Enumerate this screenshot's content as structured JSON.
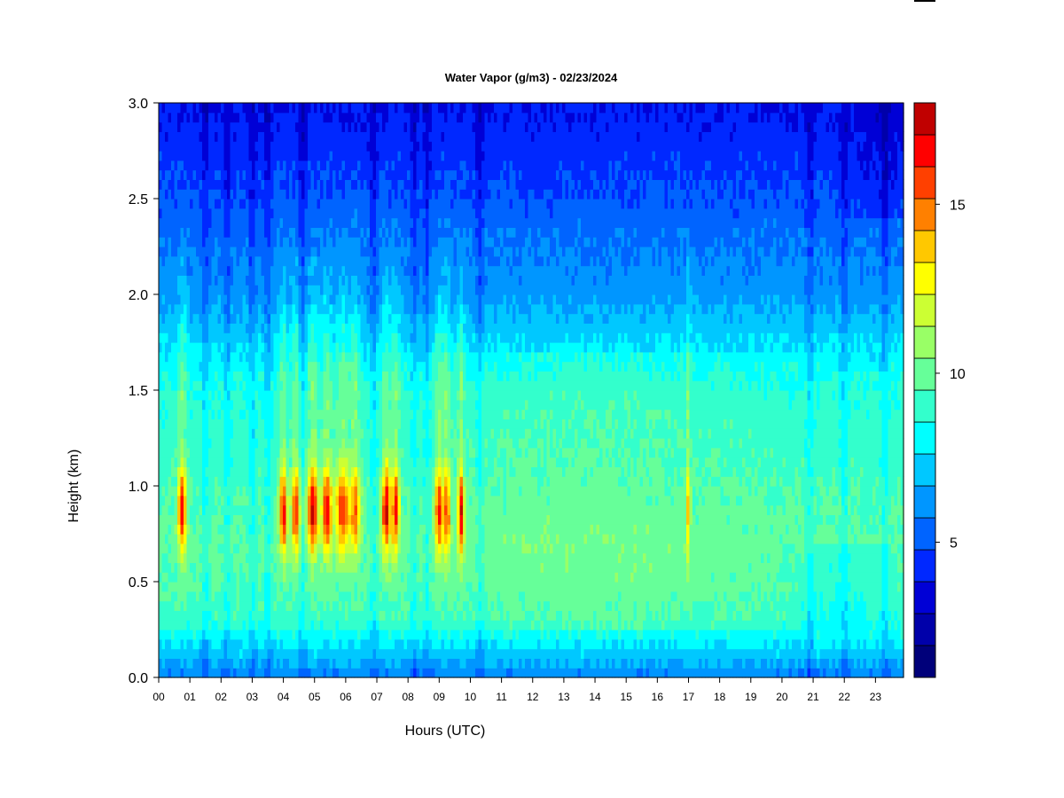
{
  "chart_data": {
    "type": "heatmap",
    "title": "Water Vapor (g/m3) - 02/23/2024",
    "xlabel": "Hours (UTC)",
    "ylabel": "Height (km)",
    "x_ticks": [
      "00",
      "01",
      "02",
      "03",
      "04",
      "05",
      "06",
      "07",
      "08",
      "09",
      "10",
      "11",
      "12",
      "13",
      "14",
      "15",
      "16",
      "17",
      "18",
      "19",
      "20",
      "21",
      "22",
      "23"
    ],
    "xlim": [
      0,
      23.9
    ],
    "y_ticks": [
      "0.0",
      "0.5",
      "1.0",
      "1.5",
      "2.0",
      "2.5",
      "3.0"
    ],
    "ylim": [
      0,
      3.0
    ],
    "colorbar": {
      "range": [
        1,
        18
      ],
      "ticks": [
        "5",
        "10",
        "15"
      ],
      "tick_values": [
        5,
        10,
        15
      ],
      "levels": [
        1,
        2,
        3,
        4,
        5,
        6,
        7,
        8,
        9,
        10,
        11,
        12,
        13,
        14,
        15,
        16,
        17,
        18
      ],
      "colors": [
        "#00007a",
        "#0000aa",
        "#0000d6",
        "#0028ff",
        "#0064ff",
        "#0096ff",
        "#00c8ff",
        "#00ffff",
        "#33ffcc",
        "#66ff99",
        "#99ff66",
        "#ccff33",
        "#ffff00",
        "#ffc800",
        "#ff8000",
        "#ff4000",
        "#ff0000",
        "#c00000",
        "#800000"
      ]
    },
    "profile_heights": [
      0.0,
      0.1,
      0.2,
      0.3,
      0.5,
      0.7,
      0.9,
      1.1,
      1.3,
      1.5,
      1.7,
      2.0,
      2.3,
      2.6,
      3.0
    ],
    "profile_values": [
      5.0,
      6.3,
      7.4,
      8.6,
      9.1,
      9.3,
      9.0,
      8.6,
      8.4,
      8.2,
      7.2,
      5.6,
      4.8,
      3.9,
      3.0
    ],
    "humid_events": [
      {
        "hour": 0.75,
        "peak": 16.5,
        "width": 0.13
      },
      {
        "hour": 4.0,
        "peak": 16.8,
        "width": 0.12
      },
      {
        "hour": 4.4,
        "peak": 16.0,
        "width": 0.14
      },
      {
        "hour": 4.95,
        "peak": 17.0,
        "width": 0.18
      },
      {
        "hour": 5.4,
        "peak": 16.6,
        "width": 0.16
      },
      {
        "hour": 5.9,
        "peak": 15.8,
        "width": 0.22
      },
      {
        "hour": 6.3,
        "peak": 15.0,
        "width": 0.16
      },
      {
        "hour": 7.3,
        "peak": 17.2,
        "width": 0.14
      },
      {
        "hour": 7.6,
        "peak": 16.4,
        "width": 0.12
      },
      {
        "hour": 9.0,
        "peak": 16.2,
        "width": 0.14
      },
      {
        "hour": 9.25,
        "peak": 16.0,
        "width": 0.1
      },
      {
        "hour": 9.7,
        "peak": 16.8,
        "width": 0.1
      },
      {
        "hour": 17.0,
        "peak": 14.0,
        "width": 0.06
      }
    ],
    "dry_hours": [
      1.5,
      2.2,
      3.0,
      3.5,
      4.6,
      6.9,
      8.2,
      8.6,
      10.3,
      20.9,
      22.0,
      23.3
    ]
  }
}
